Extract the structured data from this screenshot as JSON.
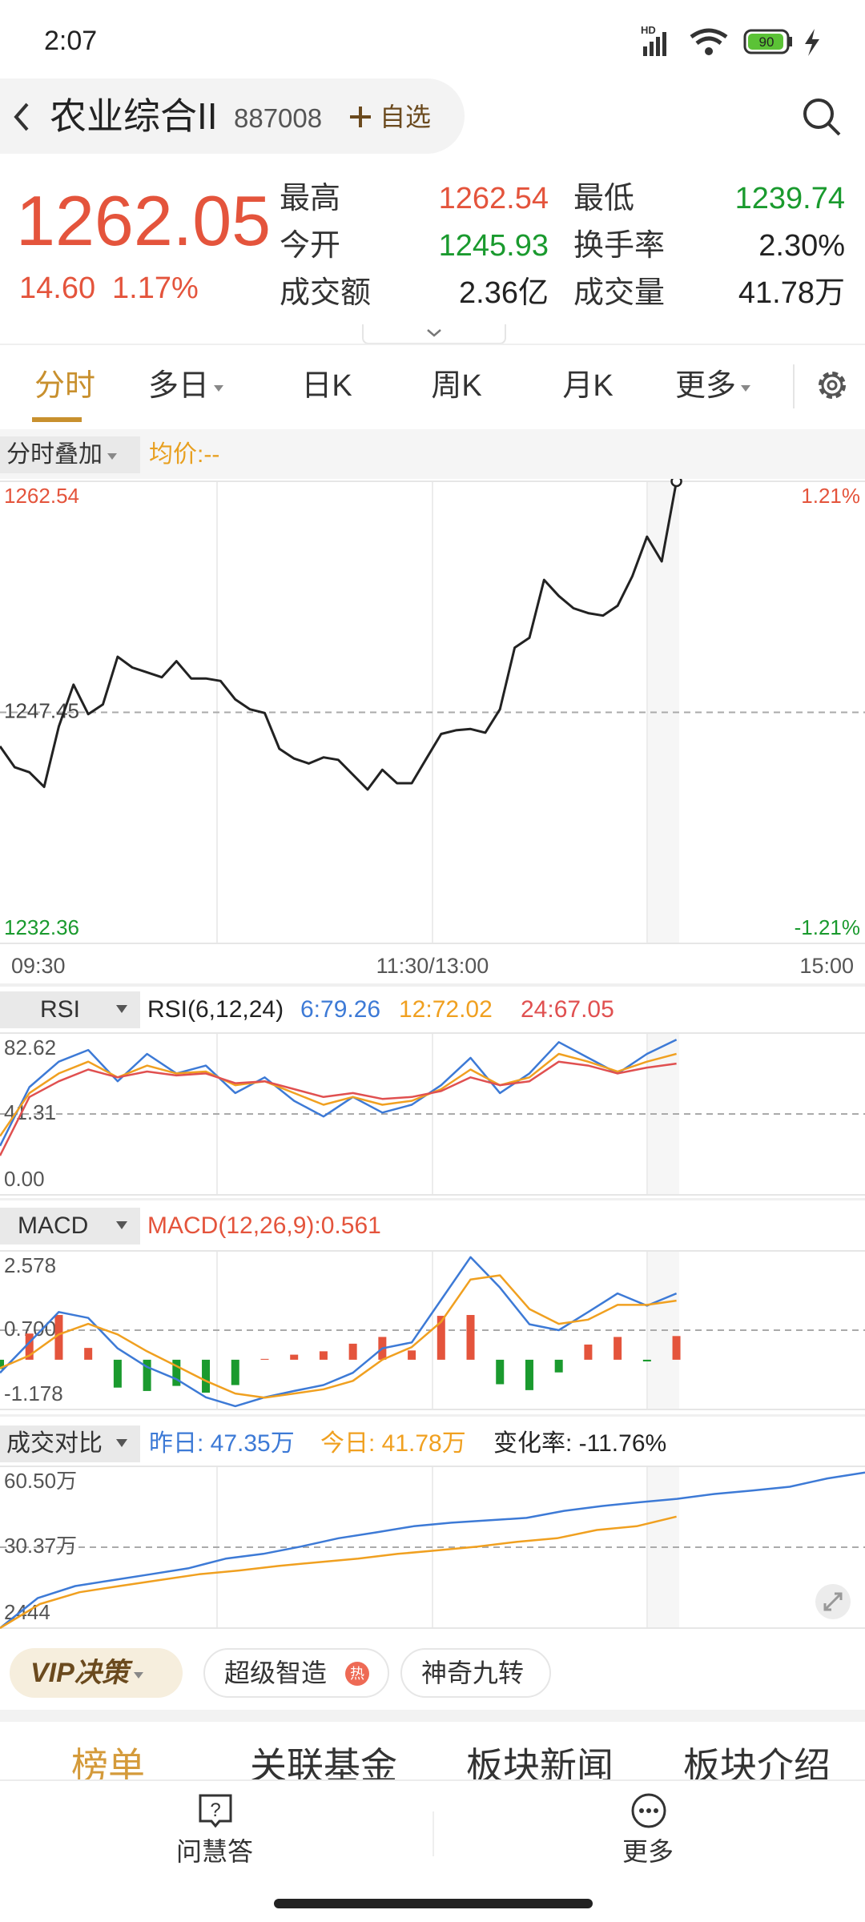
{
  "status_bar": {
    "time": "2:07",
    "battery": "90"
  },
  "header": {
    "title": "农业综合II",
    "code": "887008",
    "watch": "自选"
  },
  "quote": {
    "price": "1262.05",
    "change": "14.60",
    "change_pct": "1.17%",
    "color": "#e4543c",
    "stats": [
      {
        "label": "最高",
        "value": "1262.54",
        "color": "#e4543c"
      },
      {
        "label": "最低",
        "value": "1239.74",
        "color": "#1a9a2e"
      },
      {
        "label": "今开",
        "value": "1245.93",
        "color": "#1a9a2e"
      },
      {
        "label": "换手率",
        "value": "2.30%",
        "color": "#222222"
      },
      {
        "label": "成交额",
        "value": "2.36亿",
        "color": "#222222"
      },
      {
        "label": "成交量",
        "value": "41.78万",
        "color": "#222222"
      }
    ]
  },
  "tabs": [
    "分时",
    "多日",
    "日K",
    "周K",
    "月K",
    "更多"
  ],
  "overlay_bar": {
    "menu": "分时叠加",
    "avg": "均价:--"
  },
  "price_chart": {
    "type": "line",
    "color": "#222222",
    "values": [
      1245.23,
      1243.86,
      1243.54,
      1242.58,
      1246.52,
      1249.26,
      1247.33,
      1247.97,
      1251.08,
      1250.38,
      1250.06,
      1249.74,
      1250.79,
      1249.66,
      1249.66,
      1249.5,
      1248.29,
      1247.65,
      1247.41,
      1245.07,
      1244.43,
      1244.11,
      1244.51,
      1244.35,
      1243.38,
      1242.41,
      1243.7,
      1242.82,
      1242.82,
      1244.43,
      1246.04,
      1246.28,
      1246.36,
      1246.12,
      1247.65,
      1251.67,
      1252.32,
      1256.1,
      1255.05,
      1254.25,
      1253.93,
      1253.77,
      1254.41,
      1256.34,
      1258.92,
      1257.31,
      1262.54
    ],
    "ylim": [
      1232.36,
      1262.54
    ],
    "yticks": [
      1232.36,
      1247.45,
      1262.54
    ],
    "ytick_colors": [
      "#1a9a2e",
      "#444444",
      "#e4543c"
    ],
    "pct_labels": [
      {
        "text": "1.21%",
        "color": "#e4543c"
      },
      {
        "text": "-1.21%",
        "color": "#1a9a2e"
      }
    ],
    "xlabels": [
      "09:30",
      "11:30/13:00",
      "15:00"
    ]
  },
  "rsi": {
    "type": "line",
    "menu": "RSI",
    "params": "RSI(6,12,24)",
    "ylim": [
      0,
      82.62
    ],
    "yticks": [
      {
        "value": 0,
        "label": "0.00"
      },
      41.31,
      82.62
    ],
    "series": [
      {
        "name": "6:79.26",
        "color": "#3d7ad6",
        "values": [
          25,
          55,
          68,
          74,
          58,
          72,
          62,
          66,
          52,
          60,
          48,
          40,
          50,
          42,
          46,
          56,
          70,
          52,
          62,
          78,
          70,
          62,
          72,
          79.26
        ]
      },
      {
        "name": "12:72.02",
        "color": "#f0a020",
        "values": [
          30,
          52,
          62,
          68,
          60,
          66,
          62,
          63,
          56,
          58,
          52,
          46,
          50,
          46,
          48,
          54,
          64,
          56,
          60,
          72,
          68,
          63,
          68,
          72.02
        ]
      },
      {
        "name": "24:67.05",
        "color": "#e05050",
        "values": [
          20,
          50,
          58,
          64,
          60,
          63,
          61,
          62,
          57,
          58,
          54,
          50,
          52,
          49,
          50,
          53,
          60,
          56,
          58,
          68,
          66,
          62,
          65,
          67.05
        ]
      }
    ]
  },
  "macd": {
    "type": "line",
    "menu": "MACD",
    "ylim": [
      -1.178,
      2.578
    ],
    "yticks": [
      -1.178,
      {
        "value": 0.7,
        "label": "0.700"
      },
      2.578
    ],
    "bars": {
      "name": "MACD(12,26,9):0.561",
      "up_color": "#e4543c",
      "down_color": "#1a9a2e",
      "values": [
        -0.22,
        0.62,
        1.06,
        0.28,
        -0.66,
        -0.74,
        -0.62,
        -0.78,
        -0.6,
        0.02,
        0.12,
        0.2,
        0.38,
        0.54,
        0.22,
        1.04,
        1.06,
        -0.58,
        -0.72,
        -0.3,
        0.36,
        0.54,
        -0.04,
        0.561
      ]
    },
    "series": [
      {
        "color": "#3d7ad6",
        "values": [
          -0.31,
          0.41,
          1.13,
          0.99,
          0.27,
          -0.17,
          -0.46,
          -0.89,
          -1.1,
          -0.89,
          -0.74,
          -0.6,
          -0.31,
          0.27,
          0.41,
          1.42,
          2.43,
          1.71,
          0.84,
          0.7,
          1.13,
          1.57,
          1.28,
          1.57
        ]
      },
      {
        "color": "#f0a020",
        "values": [
          -0.2,
          0.1,
          0.6,
          0.85,
          0.6,
          0.2,
          -0.15,
          -0.5,
          -0.8,
          -0.9,
          -0.8,
          -0.7,
          -0.5,
          0,
          0.3,
          0.9,
          1.9,
          2,
          1.2,
          0.85,
          0.95,
          1.3,
          1.3,
          1.4
        ]
      }
    ]
  },
  "volume": {
    "type": "line",
    "menu": "成交对比",
    "change": "变化率: -11.76%",
    "ylim": [
      0.2444,
      60.5
    ],
    "yticks": [
      {
        "value": 0.2444,
        "label": "2444"
      },
      {
        "value": 30.37,
        "label": "30.37万"
      },
      {
        "value": 60.5,
        "label": "60.50万"
      }
    ],
    "series": [
      {
        "name": "昨日: 47.35万",
        "color": "#3d7ad6",
        "values": [
          0.24,
          11.4,
          15.9,
          18.1,
          20.3,
          22.5,
          26.1,
          27.9,
          30.6,
          33.7,
          35.9,
          38.2,
          39.5,
          40.4,
          41.3,
          43.9,
          45.7,
          47.1,
          48.4,
          50.2,
          51.5,
          52.9,
          56,
          58.2
        ]
      },
      {
        "name": "今日: 41.78万",
        "color": "#f0a020",
        "values": [
          0.24,
          9.2,
          13.6,
          15.9,
          18.1,
          20.3,
          21.7,
          23.4,
          24.8,
          26.1,
          27.9,
          29.2,
          30.6,
          32.4,
          33.7,
          36.8,
          38.2,
          41.78
        ]
      }
    ]
  },
  "buttons": [
    "VIP决策",
    "超级智造",
    "神奇九转"
  ],
  "hot_badge": "热",
  "bottom_tabs": [
    "榜单",
    "关联基金",
    "板块新闻",
    "板块介绍"
  ],
  "nav": [
    "问慧答",
    "更多"
  ]
}
